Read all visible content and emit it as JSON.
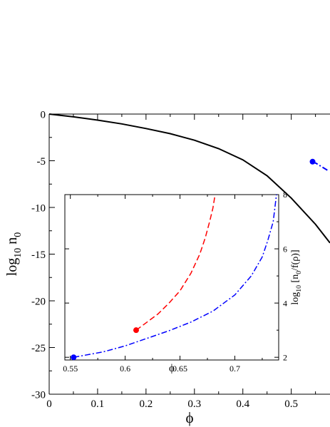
{
  "chart_data": [
    {
      "type": "line",
      "role": "main",
      "xlabel": "ϕ",
      "ylabel_base": "log",
      "ylabel_sub1": "10",
      "ylabel_var": " n",
      "ylabel_sub2": "0",
      "xlim": [
        0,
        0.58
      ],
      "ylim": [
        -30,
        0
      ],
      "xticks": [
        0,
        0.1,
        0.2,
        0.3,
        0.4,
        0.5
      ],
      "xtick_labels": [
        "0",
        "0.1",
        "0.2",
        "0.3",
        "0.4",
        "0.5"
      ],
      "yticks": [
        0,
        -5,
        -10,
        -15,
        -20,
        -25,
        -30
      ],
      "ytick_labels": [
        "0",
        "-5",
        "-10",
        "-15",
        "-20",
        "-25",
        "-30"
      ],
      "series": [
        {
          "style": "solid",
          "color": "#000000",
          "x": [
            0,
            0.05,
            0.1,
            0.15,
            0.2,
            0.25,
            0.3,
            0.35,
            0.4,
            0.45,
            0.5,
            0.55,
            0.58
          ],
          "y": [
            0,
            -0.3,
            -0.65,
            -1.05,
            -1.55,
            -2.1,
            -2.8,
            -3.7,
            -4.9,
            -6.6,
            -9.0,
            -11.8,
            -13.8
          ]
        },
        {
          "style": "dashdot",
          "color": "#0000ff",
          "marker_start": true,
          "x": [
            0.544,
            0.552,
            0.56,
            0.568,
            0.576
          ],
          "y": [
            -5.1,
            -5.3,
            -5.55,
            -5.8,
            -6.05
          ]
        }
      ]
    },
    {
      "type": "line",
      "role": "inset",
      "xlabel": "ϕ",
      "ylabel_base": "log",
      "ylabel_sub1": "10",
      "ylabel_var": " [n",
      "ylabel_sub2": "0",
      "ylabel_tail": "/f(ρ)]",
      "xlim": [
        0.545,
        0.74
      ],
      "ylim": [
        1.9,
        8
      ],
      "xticks": [
        0.55,
        0.6,
        0.65,
        0.7
      ],
      "xtick_labels": [
        "0.55",
        "0.6",
        "0.65",
        "0.7"
      ],
      "yticks": [
        2,
        4,
        6,
        8
      ],
      "ytick_labels": [
        "2",
        "4",
        "6",
        "8"
      ],
      "series": [
        {
          "style": "dashed",
          "color": "#ff0000",
          "marker_start": true,
          "x": [
            0.61,
            0.62,
            0.63,
            0.64,
            0.65,
            0.66,
            0.668,
            0.673,
            0.677,
            0.68,
            0.682
          ],
          "y": [
            3.0,
            3.3,
            3.6,
            4.0,
            4.45,
            5.1,
            5.8,
            6.4,
            7.0,
            7.5,
            8.0
          ]
        },
        {
          "style": "dashdot",
          "color": "#0000ff",
          "marker_start": true,
          "x": [
            0.553,
            0.58,
            0.6,
            0.62,
            0.64,
            0.66,
            0.68,
            0.7,
            0.715,
            0.725,
            0.73,
            0.735,
            0.738
          ],
          "y": [
            2.0,
            2.2,
            2.42,
            2.7,
            2.98,
            3.3,
            3.7,
            4.3,
            5.0,
            5.7,
            6.3,
            7.0,
            8.0
          ]
        }
      ]
    }
  ]
}
